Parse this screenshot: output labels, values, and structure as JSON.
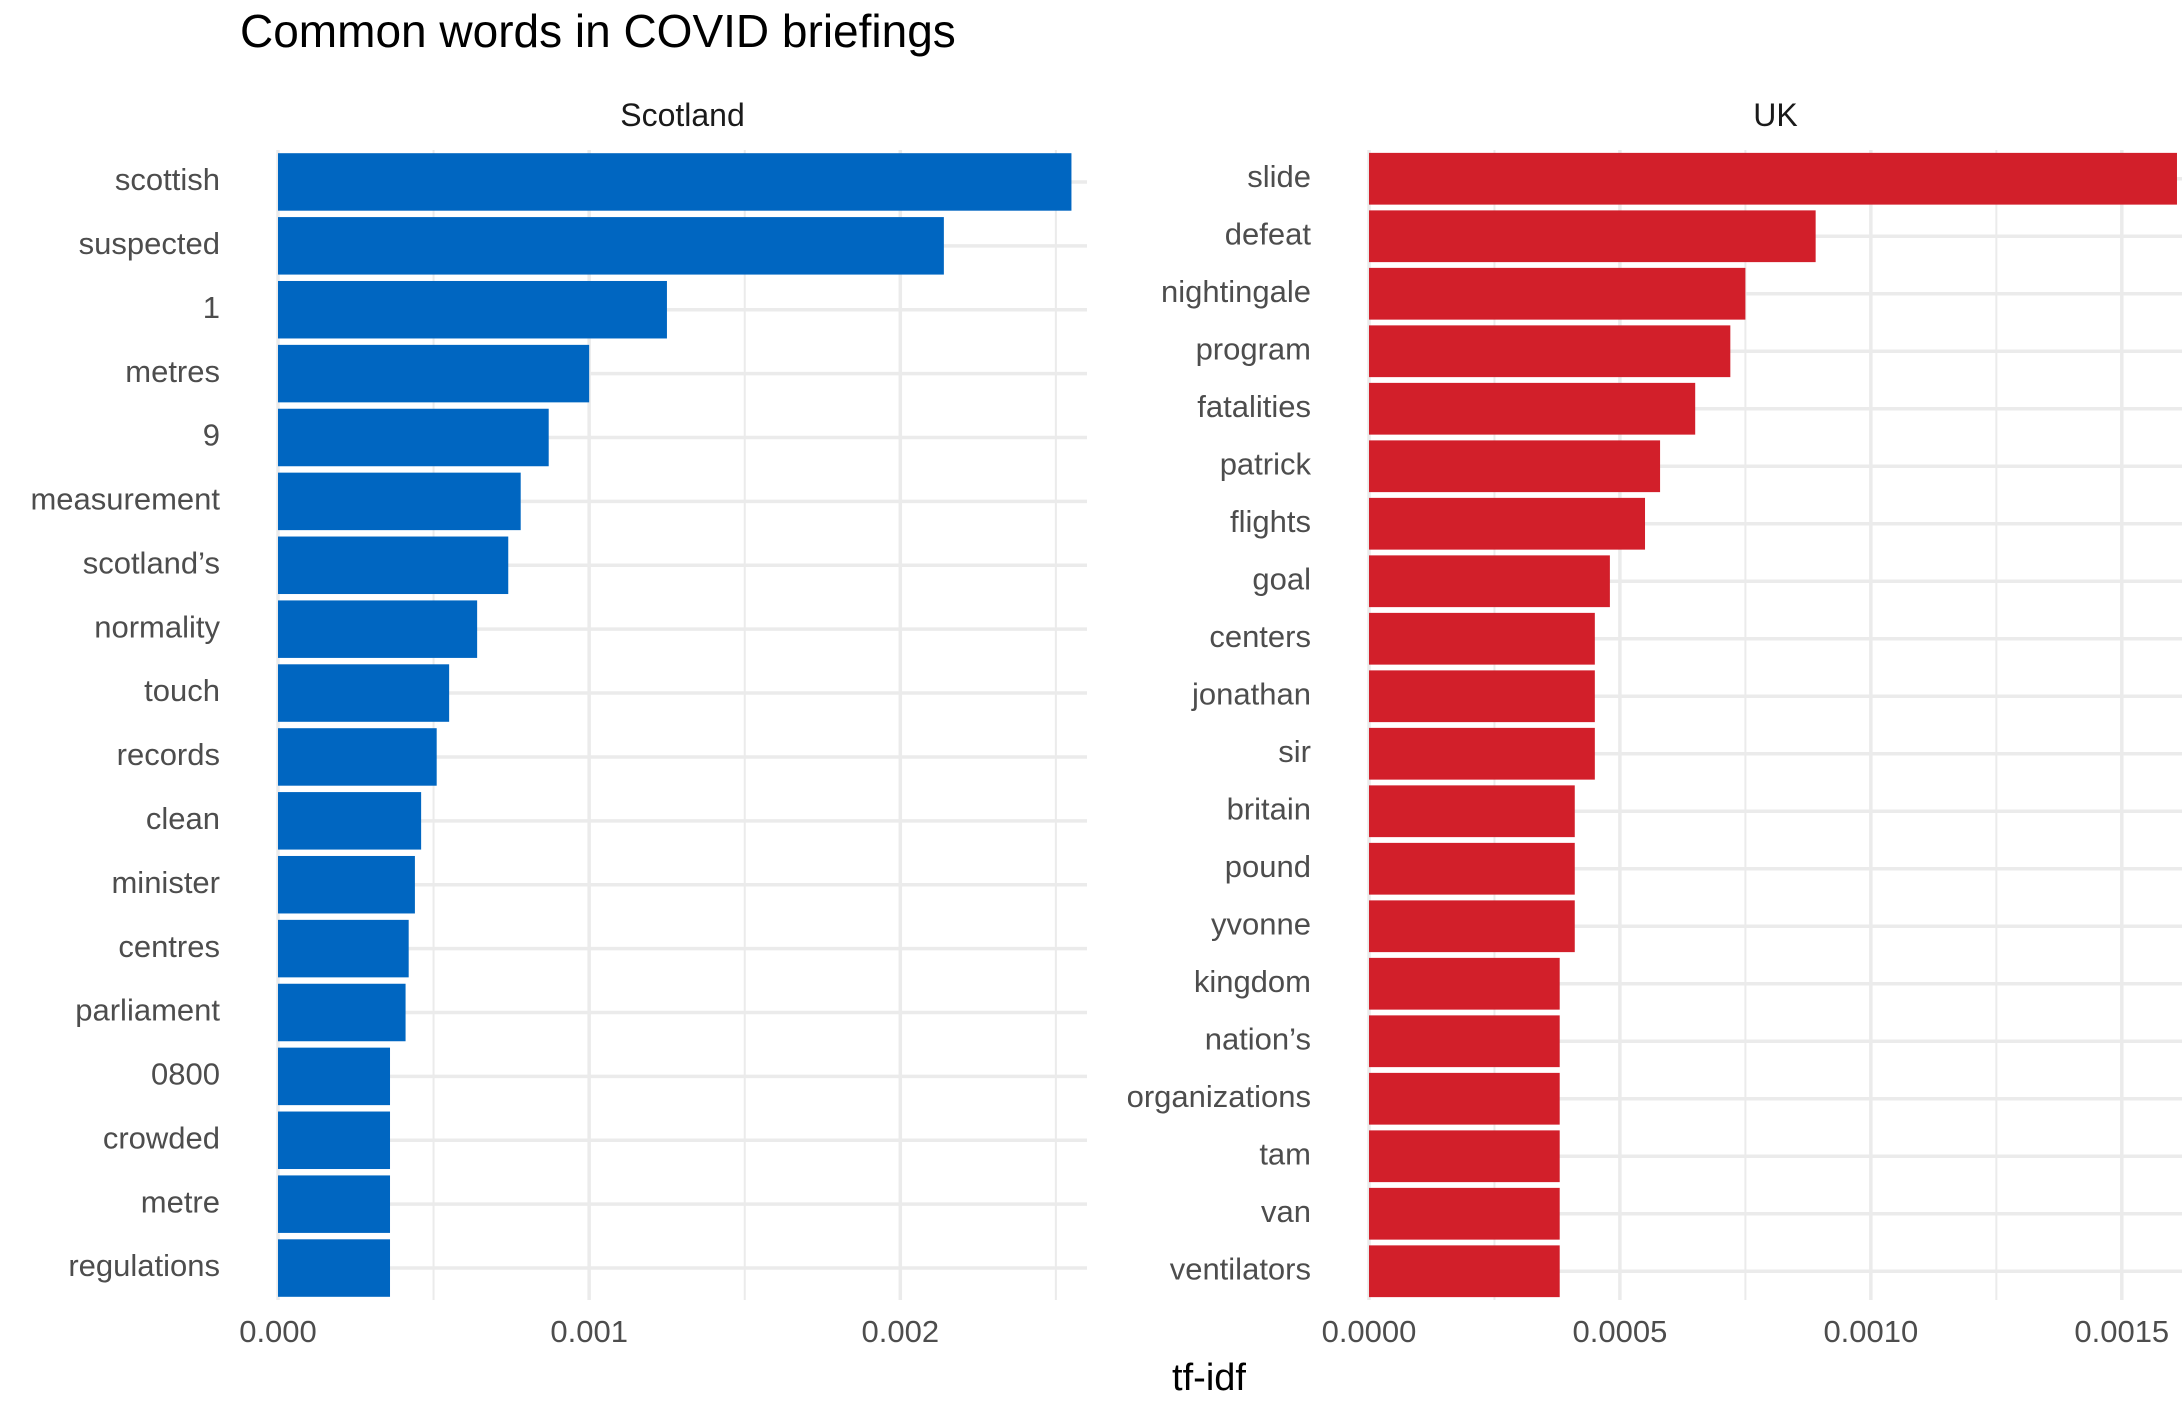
{
  "chart_data": {
    "type": "bar",
    "orientation": "horizontal",
    "title": "Common words in COVID briefings",
    "xlabel": "tf-idf",
    "ylabel": "",
    "grid": true,
    "panels": [
      {
        "name": "Scotland",
        "color": "#0066C1",
        "xlim": [
          0,
          0.0026
        ],
        "xticks": [
          0,
          0.001,
          0.002
        ],
        "xtick_labels": [
          "0.000",
          "0.001",
          "0.002"
        ],
        "categories": [
          "scottish",
          "suspected",
          "1",
          "metres",
          "9",
          "measurement",
          "scotland’s",
          "normality",
          "touch",
          "records",
          "clean",
          "minister",
          "centres",
          "parliament",
          "0800",
          "crowded",
          "metre",
          "regulations"
        ],
        "values": [
          0.00255,
          0.00214,
          0.00125,
          0.001,
          0.00087,
          0.00078,
          0.00074,
          0.00064,
          0.00055,
          0.00051,
          0.00046,
          0.00044,
          0.00042,
          0.00041,
          0.00036,
          0.00036,
          0.00036,
          0.00036
        ]
      },
      {
        "name": "UK",
        "color": "#D21F2A",
        "xlim": [
          0,
          0.00162
        ],
        "xticks": [
          0,
          0.0005,
          0.001,
          0.0015
        ],
        "xtick_labels": [
          "0.0000",
          "0.0005",
          "0.0010",
          "0.0015"
        ],
        "categories": [
          "slide",
          "defeat",
          "nightingale",
          "program",
          "fatalities",
          "patrick",
          "flights",
          "goal",
          "centers",
          "jonathan",
          "sir",
          "britain",
          "pound",
          "yvonne",
          "kingdom",
          "nation’s",
          "organizations",
          "tam",
          "van",
          "ventilators"
        ],
        "values": [
          0.00161,
          0.00089,
          0.00075,
          0.00072,
          0.00065,
          0.00058,
          0.00055,
          0.00048,
          0.00045,
          0.00045,
          0.00045,
          0.00041,
          0.00041,
          0.00041,
          0.00038,
          0.00038,
          0.00038,
          0.00038,
          0.00038,
          0.00038
        ]
      }
    ]
  }
}
